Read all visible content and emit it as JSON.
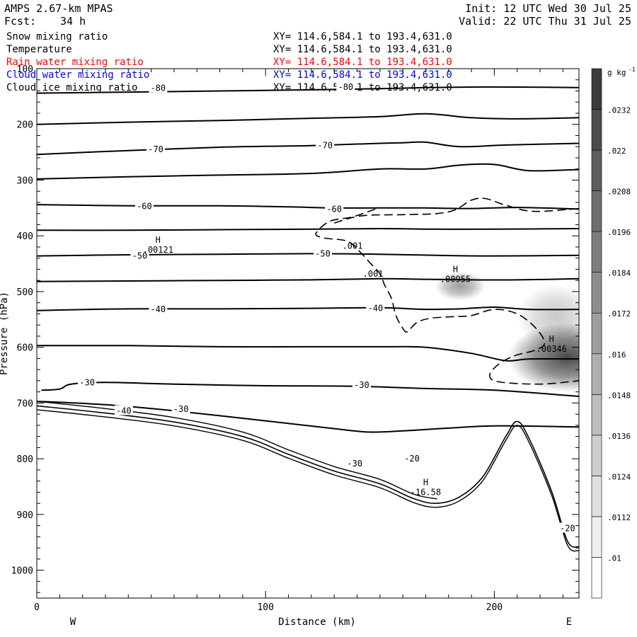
{
  "header": {
    "model": "AMPS 2.67-km MPAS",
    "fcst_label": "Fcst:",
    "fcst_value": "34 h",
    "init": "Init: 12 UTC Wed 30 Jul 25",
    "valid": "Valid: 22 UTC Thu 31 Jul 25"
  },
  "fields": [
    {
      "name": "Snow mixing ratio",
      "xy": "XY= 114.6,584.1 to 193.4,631.0",
      "color": "#000000"
    },
    {
      "name": "Temperature",
      "xy": "XY= 114.6,584.1 to 193.4,631.0",
      "color": "#000000"
    },
    {
      "name": "Rain water mixing ratio",
      "xy": "XY= 114.6,584.1 to 193.4,631.0",
      "color": "#ff0000"
    },
    {
      "name": "Cloud water mixing ratio",
      "xy": "XY= 114.6,584.1 to 193.4,631.0",
      "color": "#0000ff"
    },
    {
      "name": "Cloud ice mixing ratio",
      "xy": "XY= 114.6,584.1 to 193.4,631.0",
      "color": "#000000"
    }
  ],
  "chart_data": {
    "type": "contour",
    "xlabel": "Distance (km)",
    "ylabel": "Pressure (hPa)",
    "xlim": [
      0,
      237
    ],
    "ylim": [
      1050,
      100
    ],
    "x_ticks": [
      0,
      100,
      200
    ],
    "y_ticks": [
      100,
      200,
      300,
      400,
      500,
      600,
      700,
      800,
      900,
      1000
    ],
    "side_labels": {
      "left": "W",
      "right": "E"
    },
    "colorbar": {
      "unit": "g kg",
      "unit_exp": "-1",
      "ticks": [
        ".01",
        ".0112",
        ".0124",
        ".0136",
        ".0148",
        ".016",
        ".0172",
        ".0184",
        ".0196",
        ".0208",
        ".022",
        ".0232"
      ]
    },
    "temperature_isotherms": [
      {
        "x": [
          0,
          40,
          80,
          120,
          150,
          170,
          190,
          210,
          237
        ],
        "p": [
          144,
          142,
          140,
          138,
          136,
          134,
          133,
          133,
          134
        ]
      },
      {
        "x": [
          0,
          40,
          80,
          120,
          150,
          170,
          190,
          210,
          237
        ],
        "p": [
          200,
          196,
          193,
          189,
          186,
          181,
          188,
          190,
          188
        ]
      },
      {
        "x": [
          0,
          40,
          80,
          120,
          150,
          160,
          170,
          185,
          205,
          237
        ],
        "p": [
          254,
          247,
          241,
          238,
          234,
          233,
          232,
          240,
          237,
          234
        ]
      },
      {
        "x": [
          0,
          40,
          80,
          120,
          150,
          170,
          185,
          200,
          215,
          237
        ],
        "p": [
          298,
          294,
          291,
          288,
          280,
          280,
          273,
          272,
          283,
          281
        ]
      },
      {
        "x": [
          0,
          40,
          80,
          110,
          130,
          150,
          170,
          190,
          210,
          237
        ],
        "p": [
          344,
          346,
          346,
          348,
          350,
          350,
          350,
          351,
          349,
          352
        ]
      },
      {
        "x": [
          0,
          40,
          80,
          120,
          150,
          175,
          200,
          237
        ],
        "p": [
          390,
          390,
          389,
          388,
          387,
          388,
          388,
          387
        ]
      },
      {
        "x": [
          0,
          40,
          80,
          120,
          150,
          175,
          200,
          237
        ],
        "p": [
          436,
          434,
          433,
          432,
          433,
          435,
          436,
          435
        ]
      },
      {
        "x": [
          0,
          40,
          80,
          120,
          150,
          170,
          190,
          210,
          237
        ],
        "p": [
          482,
          481,
          480,
          479,
          477,
          478,
          479,
          479,
          477
        ]
      },
      {
        "x": [
          0,
          40,
          80,
          120,
          150,
          170,
          185,
          200,
          215,
          237
        ],
        "p": [
          534,
          531,
          531,
          530,
          529,
          532,
          531,
          528,
          532,
          532
        ]
      },
      {
        "x": [
          0,
          40,
          80,
          120,
          150,
          170,
          190,
          205,
          215,
          237
        ],
        "p": [
          597,
          597,
          599,
          599,
          599,
          600,
          611,
          624,
          621,
          621
        ]
      },
      {
        "x": [
          2,
          10,
          15,
          30,
          60,
          100,
          140,
          170,
          200,
          237
        ],
        "p": [
          677,
          675,
          666,
          663,
          666,
          669,
          670,
          674,
          677,
          688
        ]
      },
      {
        "x": [
          0,
          30,
          60,
          100,
          130,
          145,
          160,
          180,
          200,
          237
        ],
        "p": [
          697,
          703,
          714,
          732,
          746,
          752,
          750,
          745,
          741,
          743
        ]
      }
    ],
    "terrain": {
      "x": [
        0,
        30,
        60,
        90,
        110,
        130,
        150,
        165,
        175,
        185,
        195,
        205,
        210,
        215,
        225,
        232,
        237
      ],
      "p": [
        705,
        718,
        734,
        760,
        792,
        822,
        845,
        872,
        880,
        868,
        832,
        760,
        733,
        762,
        858,
        948,
        958
      ]
    },
    "isotherm_labels": [
      {
        "text": "-80",
        "x": 135,
        "p": 133
      },
      {
        "text": "-80",
        "x": 53,
        "p": 135
      },
      {
        "text": "-70",
        "x": 52,
        "p": 245
      },
      {
        "text": "-70",
        "x": 126,
        "p": 238
      },
      {
        "text": "-60",
        "x": 47,
        "p": 347
      },
      {
        "text": "-60",
        "x": 130,
        "p": 352
      },
      {
        "text": "-50",
        "x": 45,
        "p": 436
      },
      {
        "text": "-50",
        "x": 125,
        "p": 432
      },
      {
        "text": "-40",
        "x": 53,
        "p": 532
      },
      {
        "text": "-40",
        "x": 148,
        "p": 530
      },
      {
        "text": "-30",
        "x": 22,
        "p": 663
      },
      {
        "text": "-30",
        "x": 142,
        "p": 668
      },
      {
        "text": "-40",
        "x": 38,
        "p": 714
      },
      {
        "text": "-30",
        "x": 63,
        "p": 711
      },
      {
        "text": "-30",
        "x": 139,
        "p": 809
      },
      {
        "text": "-20",
        "x": 164,
        "p": 800
      },
      {
        "text": "-20",
        "x": 232,
        "p": 925
      }
    ],
    "extrema": [
      {
        "mark": "H",
        "value": ".00121",
        "x": 53,
        "p": 430
      },
      {
        "mark": "H",
        "value": ".00955",
        "x": 183,
        "p": 483
      },
      {
        "mark": "H",
        "value": ".00346",
        "x": 225,
        "p": 608
      },
      {
        "mark": "H",
        "value": "-16.58",
        "x": 170,
        "p": 865
      }
    ],
    "mixing_ratio_dashed_contour": {
      "label": ".001",
      "x": [
        148,
        138,
        128,
        122,
        126,
        136,
        142,
        146,
        150,
        152,
        155,
        157,
        160,
        162,
        166,
        172,
        182,
        190,
        200,
        210,
        218,
        222,
        218,
        209,
        202,
        198,
        202,
        220,
        237
      ],
      "p": [
        352,
        366,
        374,
        396,
        404,
        410,
        432,
        450,
        468,
        488,
        512,
        543,
        566,
        572,
        556,
        548,
        545,
        543,
        532,
        540,
        565,
        592,
        605,
        615,
        630,
        650,
        662,
        666,
        660
      ]
    },
    "mixing_ratio_dashed_contour_upper": {
      "x": [
        130,
        142,
        160,
        175,
        183,
        190,
        196,
        205,
        217,
        237
      ],
      "p": [
        377,
        364,
        362,
        360,
        353,
        336,
        333,
        345,
        356,
        351
      ]
    },
    "shaded_blobs": [
      {
        "x": 185,
        "p": 490,
        "rx": 11,
        "rp": 26,
        "intensity": 0.45
      },
      {
        "x": 227,
        "p": 545,
        "rx": 17,
        "rp": 58,
        "intensity": 0.25
      },
      {
        "x": 232,
        "p": 618,
        "rx": 26,
        "rp": 62,
        "intensity": 0.85
      }
    ],
    "labels_001": [
      {
        "x": 138,
        "p": 418
      },
      {
        "x": 147,
        "p": 468
      }
    ]
  }
}
